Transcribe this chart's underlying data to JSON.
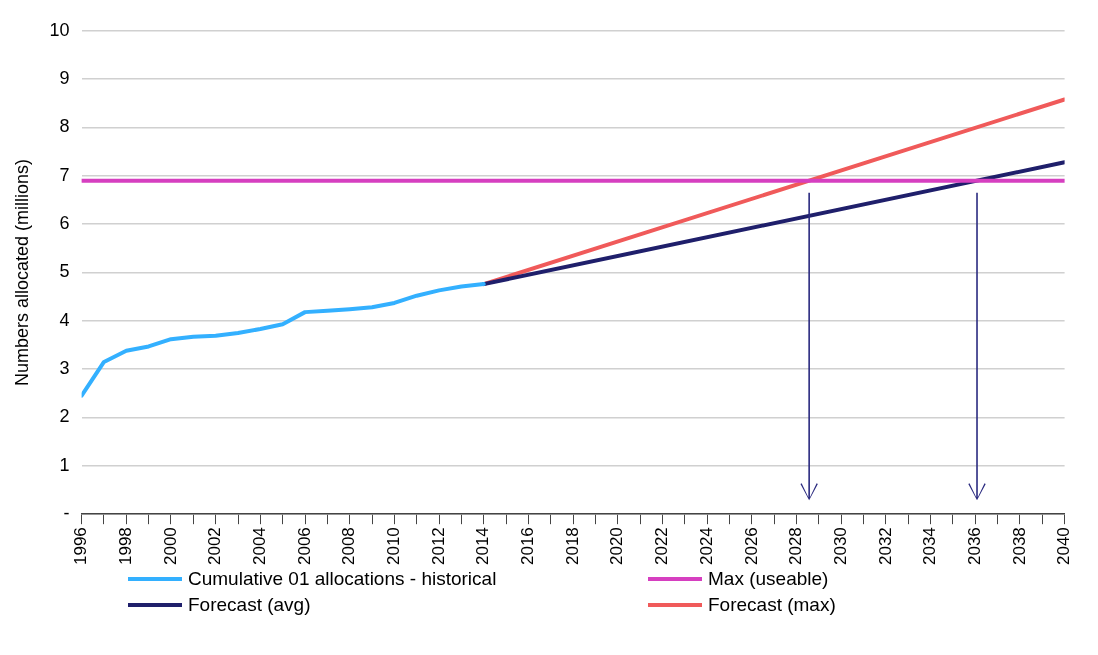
{
  "chart_data": {
    "type": "line",
    "ylabel": "Numbers allocated (millions)",
    "xlim": [
      1996,
      2040
    ],
    "xticks": [
      1996,
      {
        "value": 1997,
        "label": null
      },
      1998,
      {
        "value": 1999,
        "label": null
      },
      2000,
      {
        "value": 2001,
        "label": null
      },
      2002,
      {
        "value": 2003,
        "label": null
      },
      2004,
      {
        "value": 2005,
        "label": null
      },
      2006,
      {
        "value": 2007,
        "label": null
      },
      2008,
      {
        "value": 2009,
        "label": null
      },
      2010,
      {
        "value": 2011,
        "label": null
      },
      2012,
      {
        "value": 2013,
        "label": null
      },
      2014,
      {
        "value": 2015,
        "label": null
      },
      2016,
      {
        "value": 2017,
        "label": null
      },
      2018,
      {
        "value": 2019,
        "label": null
      },
      2020,
      {
        "value": 2021,
        "label": null
      },
      2022,
      {
        "value": 2023,
        "label": null
      },
      2024,
      {
        "value": 2025,
        "label": null
      },
      2026,
      {
        "value": 2027,
        "label": null
      },
      2028,
      {
        "value": 2029,
        "label": null
      },
      2030,
      {
        "value": 2031,
        "label": null
      },
      2032,
      {
        "value": 2033,
        "label": null
      },
      2034,
      {
        "value": 2035,
        "label": null
      },
      2036,
      {
        "value": 2037,
        "label": null
      },
      2038,
      {
        "value": 2039,
        "label": null
      },
      2040
    ],
    "ylim": [
      0,
      10
    ],
    "yticks": [
      {
        "value": 0,
        "label": "-"
      },
      1,
      2,
      3,
      4,
      5,
      6,
      7,
      8,
      9,
      10
    ],
    "grid": "y",
    "legend": "bottom",
    "marker": "none",
    "line_style": "solid",
    "series": [
      {
        "name": "Cumulative 01 allocations - historical",
        "color": "#33b0ff",
        "x": [
          1996,
          1997,
          1998,
          1999,
          2000,
          2001,
          2002,
          2003,
          2004,
          2005,
          2006,
          2007,
          2008,
          2009,
          2010,
          2011,
          2012,
          2013,
          2014
        ],
        "values": [
          2.45,
          3.15,
          3.38,
          3.47,
          3.62,
          3.67,
          3.69,
          3.75,
          3.83,
          3.93,
          4.18,
          4.21,
          4.24,
          4.28,
          4.37,
          4.52,
          4.63,
          4.71,
          4.76
        ]
      },
      {
        "name": "Max (useable)",
        "color": "#d63fc0",
        "x": [
          1996,
          2040
        ],
        "values": [
          6.9,
          6.9
        ]
      },
      {
        "name": "Forecast (avg)",
        "color": "#1f1f6b",
        "x": [
          2014,
          2040
        ],
        "values": [
          4.76,
          7.28
        ]
      },
      {
        "name": "Forecast (max)",
        "color": "#f05a5a",
        "x": [
          2014,
          2040
        ],
        "values": [
          4.76,
          8.58
        ]
      }
    ]
  }
}
